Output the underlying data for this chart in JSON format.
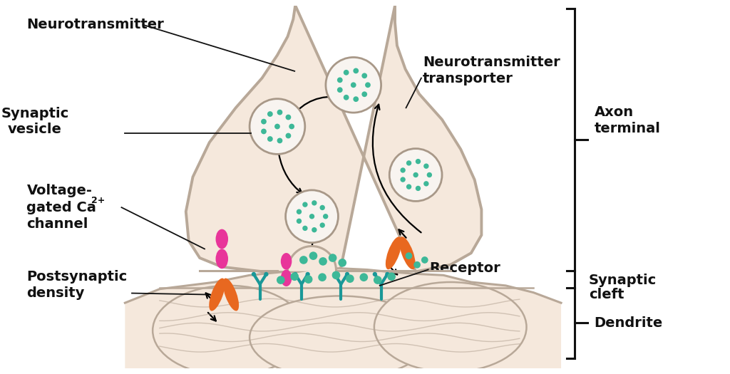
{
  "bg_color": "#ffffff",
  "axon_bg": "#f5e8dc",
  "axon_border": "#b8a898",
  "vesicle_fill": "#f8f4f0",
  "vesicle_border": "#a89888",
  "dot_color": "#3db898",
  "pink_color": "#e8359a",
  "orange_color": "#e86820",
  "teal_color": "#1a9898",
  "black": "#111111",
  "label_fontsize": 14,
  "bracket_color": "#111111",
  "labels": {
    "neurotransmitter": "Neurotransmitter",
    "synaptic_vesicle": "Synaptic\nvesicle",
    "voltage_gated_1": "Voltage-",
    "voltage_gated_2": "gated Ca",
    "voltage_gated_3": "channel",
    "postsynaptic_1": "Postsynaptic",
    "postsynaptic_2": "density",
    "nt_transporter_1": "Neurotransmitter",
    "nt_transporter_2": "transporter",
    "receptor": "Receptor",
    "axon_terminal_1": "Axon",
    "axon_terminal_2": "terminal",
    "synaptic_cleft_1": "Synaptic",
    "synaptic_cleft_2": "cleft",
    "dendrite": "Dendrite"
  }
}
